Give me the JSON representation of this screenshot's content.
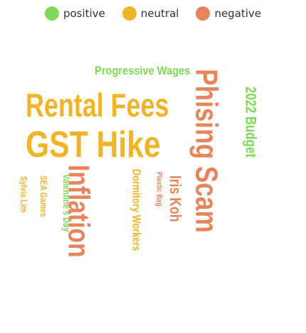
{
  "legend": {
    "items": [
      {
        "label": "positive",
        "color": "#7ed957"
      },
      {
        "label": "neutral",
        "color": "#f0b429"
      },
      {
        "label": "negative",
        "color": "#e8845c"
      }
    ]
  },
  "chart_data": {
    "type": "wordcloud",
    "sentiment_colors": {
      "positive": "#7ed957",
      "neutral": "#f0b429",
      "negative": "#e8845c"
    },
    "words": [
      {
        "text": "Rental Fees",
        "sentiment": "neutral",
        "orientation": "horizontal"
      },
      {
        "text": "GST Hike",
        "sentiment": "neutral",
        "orientation": "horizontal"
      },
      {
        "text": "Progressive Wages",
        "sentiment": "positive",
        "orientation": "horizontal"
      },
      {
        "text": "Phising Scam",
        "sentiment": "negative",
        "orientation": "vertical"
      },
      {
        "text": "2022 Budget",
        "sentiment": "positive",
        "orientation": "vertical"
      },
      {
        "text": "Inflation",
        "sentiment": "negative",
        "orientation": "vertical"
      },
      {
        "text": "Iris Koh",
        "sentiment": "negative",
        "orientation": "vertical"
      },
      {
        "text": "Dormitory Workers",
        "sentiment": "neutral",
        "orientation": "vertical"
      },
      {
        "text": "Plastic Bag",
        "sentiment": "negative",
        "orientation": "vertical"
      },
      {
        "text": "Valentine's Day",
        "sentiment": "positive",
        "orientation": "vertical"
      },
      {
        "text": "SEA Games",
        "sentiment": "neutral",
        "orientation": "vertical"
      },
      {
        "text": "Sylvia Lim",
        "sentiment": "neutral",
        "orientation": "vertical"
      }
    ]
  }
}
